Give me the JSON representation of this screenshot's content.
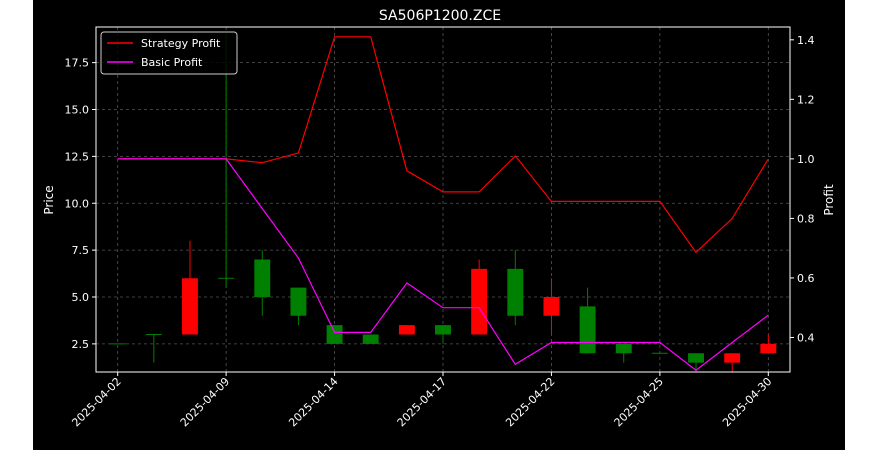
{
  "colors": {
    "figure_bg": "#000000",
    "side_bg": "#ffffff",
    "axes_edge": "#ffffff",
    "grid": "#555555",
    "text": "#ffffff",
    "up_candle": "#008000",
    "down_candle": "#ff0000",
    "strategy_line": "#ff0000",
    "basic_line": "#ff00ff"
  },
  "chart_data": {
    "type": "candlestick+line",
    "title": "SA506P1200.ZCE",
    "ylabel": "Price",
    "ylabel_right": "Profit",
    "grid": true,
    "legend_position": "upper-left",
    "xlim": [
      -0.6,
      18.6
    ],
    "ylim": [
      1.0,
      19.4
    ],
    "ylim_right": [
      0.284,
      1.443
    ],
    "yticks": [
      2.5,
      5.0,
      7.5,
      10.0,
      12.5,
      15.0,
      17.5
    ],
    "ytick_labels": [
      "2.5",
      "5.0",
      "7.5",
      "10.0",
      "12.5",
      "15.0",
      "17.5"
    ],
    "yticks_right": [
      0.4,
      0.6,
      0.8,
      1.0,
      1.2,
      1.4
    ],
    "ytick_labels_right": [
      "0.4",
      "0.6",
      "0.8",
      "1.0",
      "1.2",
      "1.4"
    ],
    "xticks": [
      0,
      3,
      6,
      9,
      12,
      15,
      18
    ],
    "xtick_labels": [
      "2025-04-02",
      "2025-04-09",
      "2025-04-14",
      "2025-04-17",
      "2025-04-22",
      "2025-04-25",
      "2025-04-30"
    ],
    "candles": [
      {
        "x": 0,
        "open": 2.5,
        "close": 2.5,
        "high": 2.5,
        "low": 2.5
      },
      {
        "x": 1,
        "open": 3.0,
        "close": 3.0,
        "high": 3.0,
        "low": 1.5
      },
      {
        "x": 2,
        "open": 6.0,
        "close": 3.0,
        "high": 8.0,
        "low": 3.0
      },
      {
        "x": 3,
        "open": 6.0,
        "close": 6.0,
        "high": 19.0,
        "low": 5.5
      },
      {
        "x": 4,
        "open": 5.0,
        "close": 7.0,
        "high": 7.5,
        "low": 4.0
      },
      {
        "x": 5,
        "open": 4.0,
        "close": 5.5,
        "high": 5.5,
        "low": 3.5
      },
      {
        "x": 6,
        "open": 2.5,
        "close": 3.5,
        "high": 3.5,
        "low": 2.5
      },
      {
        "x": 7,
        "open": 2.5,
        "close": 3.0,
        "high": 3.0,
        "low": 2.5
      },
      {
        "x": 8,
        "open": 3.5,
        "close": 3.0,
        "high": 3.5,
        "low": 3.0
      },
      {
        "x": 9,
        "open": 3.0,
        "close": 3.5,
        "high": 3.5,
        "low": 2.5
      },
      {
        "x": 10,
        "open": 6.5,
        "close": 3.0,
        "high": 7.0,
        "low": 3.0
      },
      {
        "x": 11,
        "open": 4.0,
        "close": 6.5,
        "high": 7.5,
        "low": 3.5
      },
      {
        "x": 12,
        "open": 5.0,
        "close": 4.0,
        "high": 6.0,
        "low": 3.0
      },
      {
        "x": 13,
        "open": 2.0,
        "close": 4.5,
        "high": 5.5,
        "low": 2.0
      },
      {
        "x": 14,
        "open": 2.0,
        "close": 2.5,
        "high": 2.5,
        "low": 1.5
      },
      {
        "x": 15,
        "open": 2.0,
        "close": 2.0,
        "high": 2.0,
        "low": 2.0
      },
      {
        "x": 16,
        "open": 1.5,
        "close": 2.0,
        "high": 2.0,
        "low": 1.0
      },
      {
        "x": 17,
        "open": 2.0,
        "close": 1.5,
        "high": 2.0,
        "low": 1.0
      },
      {
        "x": 18,
        "open": 2.5,
        "close": 2.0,
        "high": 3.0,
        "low": 2.0
      }
    ],
    "series": [
      {
        "name": "Strategy Profit",
        "axis": "right",
        "color": "#ff0000",
        "x": [
          0,
          1,
          2,
          3,
          4,
          5,
          6,
          7,
          8,
          9,
          10,
          11,
          12,
          13,
          14,
          15,
          16,
          17,
          18
        ],
        "values": [
          1.0,
          1.0,
          1.0,
          1.0,
          0.987,
          1.02,
          1.41,
          1.41,
          0.96,
          0.889,
          0.889,
          1.01,
          0.857,
          0.857,
          0.857,
          0.857,
          0.686,
          0.8,
          1.0
        ]
      },
      {
        "name": "Basic Profit",
        "axis": "right",
        "color": "#ff00ff",
        "x": [
          0,
          1,
          2,
          3,
          4,
          5,
          6,
          7,
          8,
          9,
          10,
          11,
          12,
          13,
          14,
          15,
          16,
          17,
          18
        ],
        "values": [
          1.0,
          1.0,
          1.0,
          1.0,
          0.833,
          0.667,
          0.417,
          0.417,
          0.583,
          0.5,
          0.5,
          0.31,
          0.383,
          0.383,
          0.383,
          0.383,
          0.29,
          0.383,
          0.475
        ]
      }
    ]
  }
}
